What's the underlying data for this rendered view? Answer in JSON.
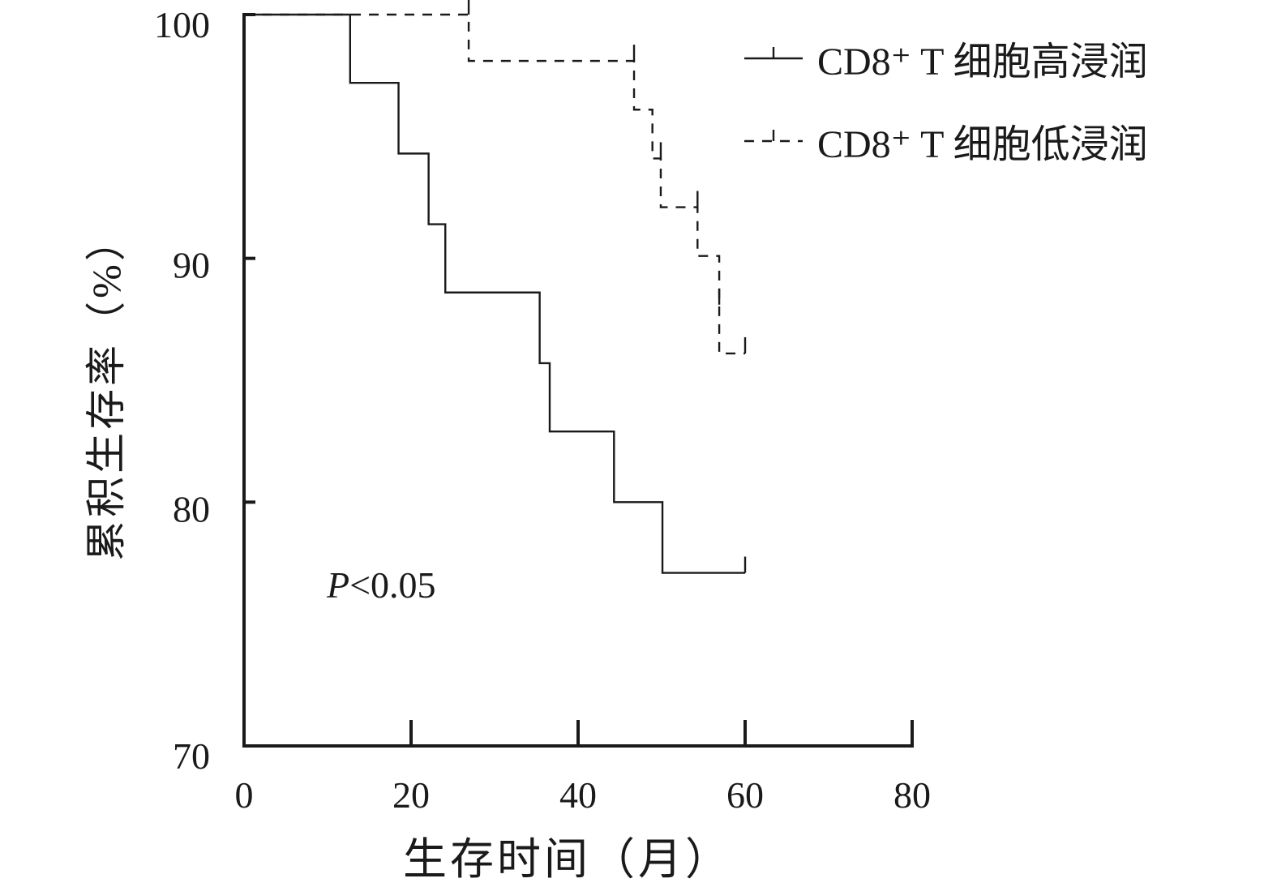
{
  "chart_data": {
    "type": "line",
    "subtype": "kaplan-meier-step",
    "title": "",
    "xlabel": "生存时间（月）",
    "ylabel": "累积生存率（%）",
    "xlim": [
      0,
      80
    ],
    "ylim": [
      70,
      100
    ],
    "xticks": [
      0,
      20,
      40,
      60,
      80
    ],
    "yticks": [
      70,
      80,
      90,
      100
    ],
    "grid": false,
    "legend_position": "top-right",
    "annotation": {
      "italic": "P",
      "text": "<0.05"
    },
    "series": [
      {
        "name": "CD8⁺ T 细胞高浸润",
        "line_style": "solid",
        "x": [
          0,
          12.7,
          18.5,
          22.1,
          24.1,
          35.4,
          36.6,
          44.3,
          50.1,
          60
        ],
        "y": [
          100,
          97.2,
          94.3,
          91.4,
          88.6,
          85.7,
          82.9,
          80.0,
          77.1,
          77.1
        ],
        "censored": [
          {
            "x": 60,
            "y": 77.1
          }
        ]
      },
      {
        "name": "CD8⁺ T 细胞低浸润",
        "line_style": "dashed",
        "x": [
          0,
          26.9,
          46.7,
          48.9,
          49.9,
          54.3,
          56.9,
          60
        ],
        "y": [
          100,
          98.1,
          96.1,
          94.1,
          92.1,
          90.1,
          86.1,
          86.1
        ],
        "censored": [
          {
            "x": 26.9,
            "y": 100
          },
          {
            "x": 46.7,
            "y": 98.1
          },
          {
            "x": 49.9,
            "y": 94.1
          },
          {
            "x": 54.3,
            "y": 92.1
          },
          {
            "x": 56.9,
            "y": 88.1
          },
          {
            "x": 60,
            "y": 86.1
          }
        ]
      }
    ]
  }
}
